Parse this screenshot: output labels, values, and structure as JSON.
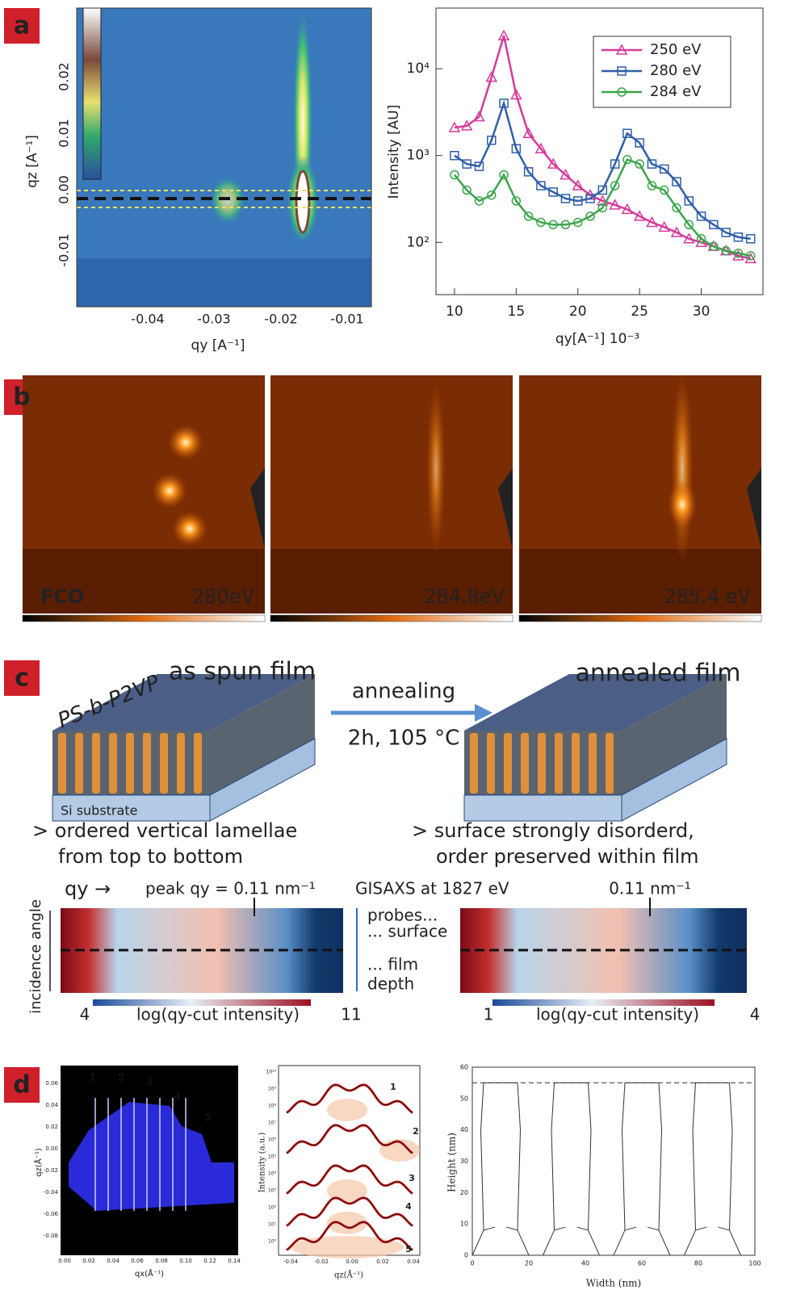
{
  "panel_labels": [
    "a",
    "b",
    "c",
    "d"
  ],
  "chart_data": {
    "type": "line",
    "ylabel": "Intensity [AU]",
    "xlabel": "qy[A⁻¹] 10⁻³",
    "x": [
      10,
      11,
      12,
      13,
      14,
      15,
      16,
      17,
      18,
      19,
      20,
      21,
      22,
      23,
      24,
      25,
      26,
      27,
      28,
      29,
      30,
      31,
      32,
      33,
      34
    ],
    "series": [
      {
        "name": "250 eV",
        "color": "#d63a9a",
        "marker": "triangle",
        "values": [
          2100,
          2200,
          2800,
          8000,
          24000,
          5000,
          1800,
          1200,
          800,
          600,
          450,
          350,
          300,
          270,
          240,
          200,
          170,
          150,
          130,
          110,
          100,
          90,
          80,
          70,
          65
        ]
      },
      {
        "name": "280 eV",
        "color": "#2f5fa8",
        "marker": "square",
        "values": [
          1000,
          800,
          750,
          1500,
          4000,
          1200,
          650,
          450,
          380,
          320,
          300,
          320,
          400,
          800,
          1800,
          1400,
          800,
          700,
          500,
          300,
          200,
          160,
          130,
          115,
          110
        ]
      },
      {
        "name": "284 eV",
        "color": "#3aa64a",
        "marker": "circle",
        "values": [
          600,
          400,
          300,
          350,
          600,
          300,
          200,
          170,
          160,
          160,
          170,
          200,
          250,
          450,
          900,
          800,
          450,
          400,
          250,
          160,
          110,
          90,
          80,
          75,
          70
        ]
      }
    ],
    "xlim": [
      8.5,
      35
    ],
    "xticks": [
      10,
      15,
      20,
      25,
      30
    ],
    "ylim": [
      25,
      50000
    ],
    "log_y": true,
    "yticks": [
      {
        "value": 100,
        "label": "10²"
      },
      {
        "value": 1000,
        "label": "10³"
      },
      {
        "value": 10000,
        "label": "10⁴"
      }
    ],
    "legend": "top-right"
  },
  "panel_a_map": {
    "xticks": [
      "-0.04",
      "-0.03",
      "-0.02",
      "-0.01"
    ],
    "yticks": [
      "0.02",
      "0.01",
      "0.00",
      "-0.01"
    ],
    "xlabel": "qy [A⁻¹]",
    "ylabel": "qz [A⁻¹]"
  },
  "panel_b": {
    "labels": [
      "FCO",
      "280eV",
      "284.8eV",
      "285.4 eV"
    ]
  },
  "panel_c": {
    "as_spun": "as spun film",
    "annealing": "annealing",
    "conditions": "2h, 105 °C",
    "annealed": "annealed film",
    "polymer": "PS-b-P2VP",
    "substrate": "Si substrate",
    "left_note": [
      "> ordered vertical lamellae",
      "from top to bottom"
    ],
    "right_note": [
      "> surface strongly disorderd,",
      "order preserved within film"
    ],
    "qy_arrow": "qy →",
    "peak_left": "peak qy = 0.11 nm⁻¹",
    "peak_right": "0.11 nm⁻¹",
    "gisaxs": "GISAXS at 1827 eV",
    "probes": [
      "probes...",
      "... surface",
      "... film",
      "depth"
    ],
    "incidence": "incidence angle",
    "left_bar": [
      "4",
      "log(qy-cut intensity)",
      "11"
    ],
    "right_bar": [
      "1",
      "log(qy-cut intensity)",
      "4"
    ]
  },
  "panel_d": {
    "map": {
      "yticks": [
        "0.06",
        "0.04",
        "0.02",
        "0.00",
        "-0.02",
        "-0.04",
        "-0.06",
        "-0.08"
      ],
      "xticks": [
        "0.00",
        "0.02",
        "0.04",
        "0.06",
        "0.08",
        "0.10",
        "0.12",
        "0.14"
      ],
      "ylabel": "qz(Å⁻¹)",
      "xlabel": "qx(Å⁻¹)",
      "peaks": [
        "1",
        "2",
        "3",
        "4",
        "5"
      ]
    },
    "profiles": {
      "ylabel": "Intensity (a.u.)",
      "xlabel": "qz(Å⁻¹)",
      "xticks": [
        "-0.04",
        "-0.02",
        "0.00",
        "0.02",
        "0.04"
      ],
      "yticks": [
        "10¹⁰",
        "10⁹",
        "10⁸",
        "10⁷",
        "10⁶",
        "10⁵",
        "10⁴",
        "10³",
        "10²",
        "10¹",
        "10⁰"
      ],
      "curves": [
        "1",
        "2",
        "3",
        "4",
        "5"
      ]
    },
    "model": {
      "ylabel": "Height (nm)",
      "xlabel": "Width (nm)",
      "xticks": [
        "0",
        "20",
        "40",
        "60",
        "80",
        "100"
      ],
      "yticks": [
        "0",
        "10",
        "20",
        "30",
        "40",
        "50",
        "60"
      ]
    }
  }
}
